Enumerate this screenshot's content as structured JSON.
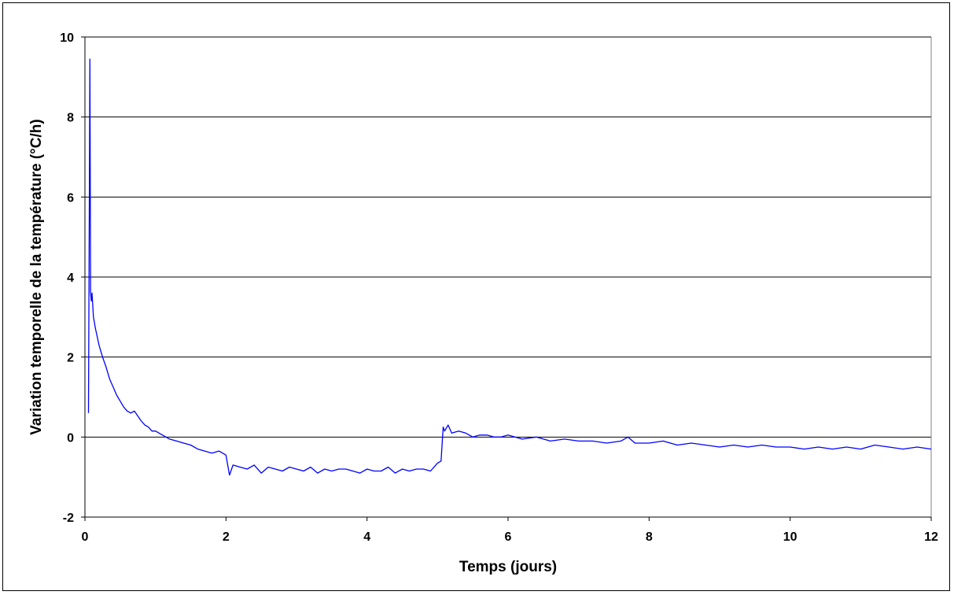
{
  "chart_data": {
    "type": "line",
    "title": "",
    "xlabel": "Temps (jours)",
    "ylabel": "Variation temporelle de la température (°C/h)",
    "xlim": [
      0,
      12
    ],
    "ylim": [
      -2,
      10
    ],
    "x_ticks": [
      0,
      2,
      4,
      6,
      8,
      10,
      12
    ],
    "y_ticks": [
      -2,
      0,
      2,
      4,
      6,
      8,
      10
    ],
    "x_tick_labels": [
      "0",
      "2",
      "4",
      "6",
      "8",
      "10",
      "12"
    ],
    "y_tick_labels": [
      "-2",
      "0",
      "2",
      "4",
      "6",
      "8",
      "10"
    ],
    "grid": "horizontal",
    "legend": "none",
    "series": [
      {
        "color": "#0000ff",
        "x": [
          0.05,
          0.07,
          0.08,
          0.09,
          0.1,
          0.12,
          0.15,
          0.2,
          0.25,
          0.3,
          0.35,
          0.4,
          0.45,
          0.5,
          0.55,
          0.6,
          0.65,
          0.7,
          0.72,
          0.78,
          0.8,
          0.85,
          0.9,
          0.95,
          1.0,
          1.1,
          1.2,
          1.3,
          1.4,
          1.5,
          1.6,
          1.7,
          1.8,
          1.9,
          2.0,
          2.05,
          2.1,
          2.2,
          2.3,
          2.4,
          2.5,
          2.6,
          2.7,
          2.8,
          2.9,
          3.0,
          3.1,
          3.2,
          3.3,
          3.4,
          3.5,
          3.6,
          3.7,
          3.8,
          3.9,
          4.0,
          4.1,
          4.2,
          4.3,
          4.4,
          4.5,
          4.6,
          4.7,
          4.8,
          4.9,
          5.0,
          5.05,
          5.08,
          5.1,
          5.15,
          5.2,
          5.3,
          5.4,
          5.5,
          5.6,
          5.7,
          5.8,
          5.9,
          6.0,
          6.2,
          6.4,
          6.6,
          6.8,
          7.0,
          7.2,
          7.4,
          7.6,
          7.7,
          7.8,
          8.0,
          8.2,
          8.4,
          8.6,
          8.8,
          9.0,
          9.2,
          9.4,
          9.6,
          9.8,
          10.0,
          10.2,
          10.4,
          10.6,
          10.8,
          11.0,
          11.2,
          11.4,
          11.6,
          11.8,
          12.0
        ],
        "y": [
          0.6,
          9.45,
          3.6,
          3.4,
          3.6,
          3.0,
          2.7,
          2.3,
          2.0,
          1.75,
          1.45,
          1.25,
          1.05,
          0.9,
          0.75,
          0.65,
          0.6,
          0.65,
          0.6,
          0.45,
          0.4,
          0.3,
          0.25,
          0.15,
          0.15,
          0.05,
          -0.05,
          -0.1,
          -0.15,
          -0.2,
          -0.3,
          -0.35,
          -0.4,
          -0.35,
          -0.45,
          -0.95,
          -0.7,
          -0.75,
          -0.8,
          -0.7,
          -0.9,
          -0.75,
          -0.8,
          -0.85,
          -0.75,
          -0.8,
          -0.85,
          -0.75,
          -0.9,
          -0.8,
          -0.85,
          -0.8,
          -0.8,
          -0.85,
          -0.9,
          -0.8,
          -0.85,
          -0.85,
          -0.75,
          -0.9,
          -0.8,
          -0.85,
          -0.8,
          -0.8,
          -0.85,
          -0.65,
          -0.6,
          0.25,
          0.15,
          0.3,
          0.1,
          0.15,
          0.1,
          0.0,
          0.05,
          0.05,
          0.0,
          0.0,
          0.05,
          -0.05,
          0.0,
          -0.1,
          -0.05,
          -0.1,
          -0.1,
          -0.15,
          -0.1,
          0.0,
          -0.15,
          -0.15,
          -0.1,
          -0.2,
          -0.15,
          -0.2,
          -0.25,
          -0.2,
          -0.25,
          -0.2,
          -0.25,
          -0.25,
          -0.3,
          -0.25,
          -0.3,
          -0.25,
          -0.3,
          -0.2,
          -0.25,
          -0.3,
          -0.25,
          -0.3
        ]
      }
    ]
  }
}
